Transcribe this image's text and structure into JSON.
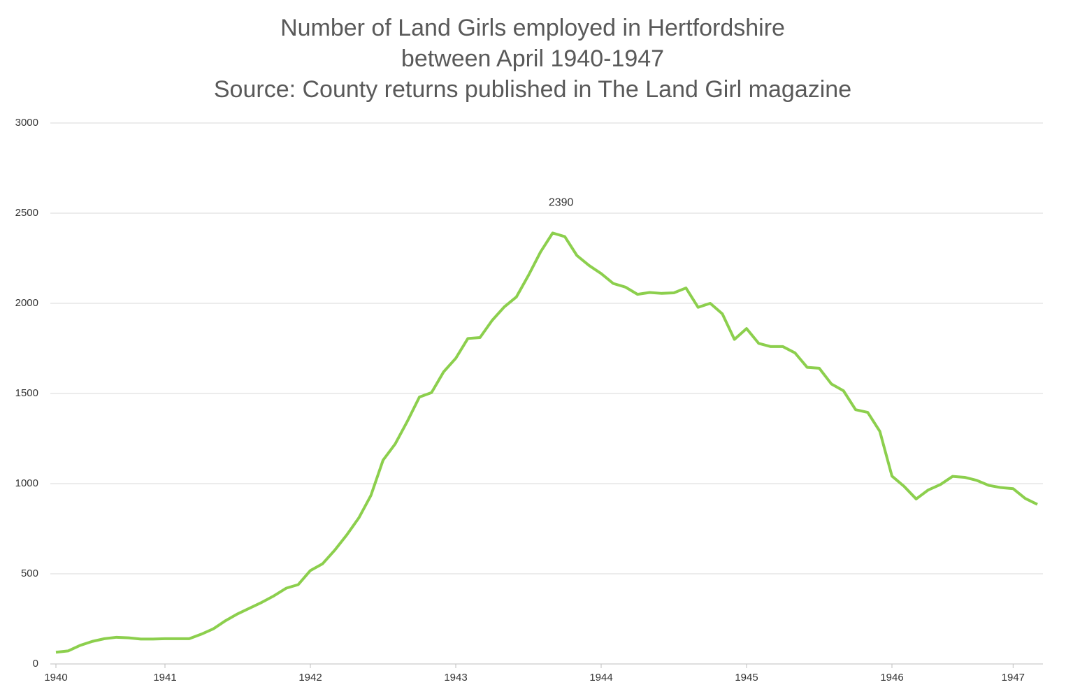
{
  "chart_data": {
    "type": "line",
    "title": [
      "Number of Land Girls employed in Hertfordshire",
      "between April 1940-1947",
      "Source: County returns published in The Land Girl magazine"
    ],
    "categories": [
      "1940",
      null,
      null,
      null,
      null,
      null,
      null,
      null,
      null,
      "1941",
      null,
      null,
      null,
      null,
      null,
      null,
      null,
      null,
      null,
      null,
      null,
      "1942",
      null,
      null,
      null,
      null,
      null,
      null,
      null,
      null,
      null,
      null,
      null,
      "1943",
      null,
      null,
      null,
      null,
      null,
      null,
      null,
      null,
      null,
      null,
      null,
      "1944",
      null,
      null,
      null,
      null,
      null,
      null,
      null,
      null,
      null,
      null,
      null,
      "1945",
      null,
      null,
      null,
      null,
      null,
      null,
      null,
      null,
      null,
      null,
      null,
      "1946",
      null,
      null,
      null,
      null,
      null,
      null,
      null,
      null,
      null,
      "1947",
      null,
      null
    ],
    "series": [
      {
        "name": "Land Girls",
        "color": "#8ccf4d",
        "values": [
          65,
          72,
          103,
          125,
          140,
          148,
          145,
          138,
          138,
          140,
          140,
          140,
          165,
          195,
          240,
          278,
          310,
          342,
          378,
          420,
          440,
          518,
          555,
          630,
          715,
          810,
          935,
          1130,
          1220,
          1345,
          1480,
          1505,
          1620,
          1695,
          1805,
          1810,
          1905,
          1980,
          2035,
          2155,
          2285,
          2390,
          2370,
          2265,
          2210,
          2165,
          2110,
          2090,
          2050,
          2060,
          2055,
          2058,
          2085,
          1978,
          2000,
          1942,
          1800,
          1860,
          1778,
          1760,
          1760,
          1725,
          1645,
          1640,
          1553,
          1515,
          1410,
          1395,
          1290,
          1042,
          985,
          915,
          965,
          995,
          1040,
          1035,
          1018,
          990,
          978,
          972,
          918,
          885
        ],
        "value_labels": [
          null,
          null,
          null,
          null,
          null,
          null,
          null,
          null,
          null,
          null,
          null,
          null,
          null,
          null,
          null,
          null,
          null,
          null,
          null,
          null,
          null,
          null,
          null,
          null,
          null,
          null,
          null,
          null,
          null,
          null,
          null,
          null,
          null,
          null,
          null,
          null,
          null,
          null,
          null,
          null,
          null,
          "2390",
          null,
          null,
          null,
          null,
          null,
          null,
          null,
          null,
          null,
          null,
          null,
          null,
          null,
          null,
          null,
          null,
          null,
          null,
          null,
          null,
          null,
          null,
          null,
          null,
          null,
          null,
          null,
          null,
          null,
          null,
          null,
          null,
          null,
          null,
          null,
          null,
          null,
          null,
          null,
          null
        ]
      }
    ],
    "ylim": [
      0,
      3000
    ],
    "yticks": [
      0,
      500,
      1000,
      1500,
      2000,
      2500,
      3000
    ],
    "grid": true
  }
}
